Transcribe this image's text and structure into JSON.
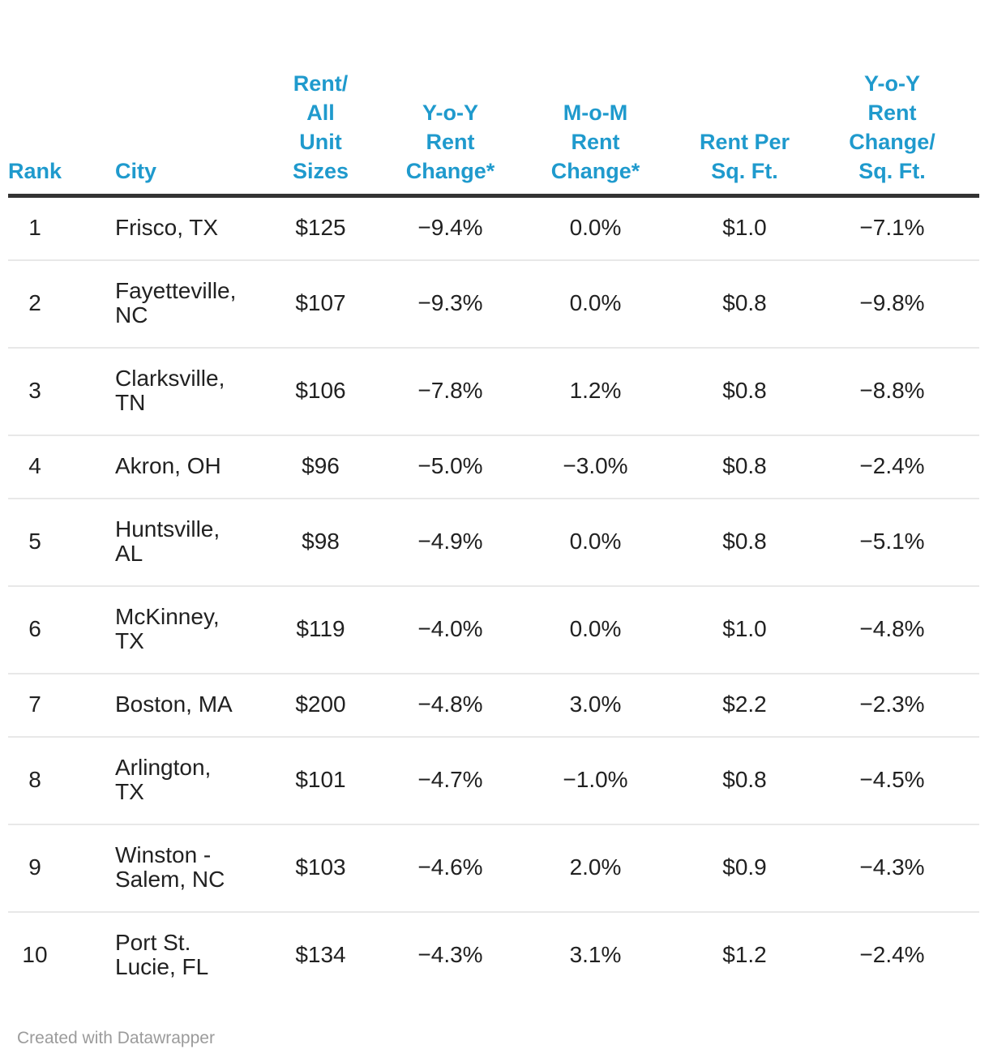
{
  "chart_data": {
    "type": "table",
    "columns": [
      {
        "key": "rank",
        "label": "Rank"
      },
      {
        "key": "city",
        "label": "City"
      },
      {
        "key": "rent",
        "label": "Rent/\nAll\nUnit\nSizes"
      },
      {
        "key": "yoy",
        "label": "Y-o-Y\nRent\nChange*"
      },
      {
        "key": "mom",
        "label": "M-o-M\nRent\nChange*"
      },
      {
        "key": "rpsf",
        "label": "Rent Per\nSq. Ft."
      },
      {
        "key": "yoyrpsf",
        "label": "Y-o-Y\nRent\nChange/\nSq. Ft."
      }
    ],
    "rows": [
      {
        "rank": "1",
        "city": "Frisco, TX",
        "rent": "$125",
        "yoy": "−9.4%",
        "mom": "0.0%",
        "rpsf": "$1.0",
        "yoyrpsf": "−7.1%"
      },
      {
        "rank": "2",
        "city": "Fayetteville,\nNC",
        "rent": "$107",
        "yoy": "−9.3%",
        "mom": "0.0%",
        "rpsf": "$0.8",
        "yoyrpsf": "−9.8%"
      },
      {
        "rank": "3",
        "city": "Clarksville,\nTN",
        "rent": "$106",
        "yoy": "−7.8%",
        "mom": "1.2%",
        "rpsf": "$0.8",
        "yoyrpsf": "−8.8%"
      },
      {
        "rank": "4",
        "city": "Akron, OH",
        "rent": "$96",
        "yoy": "−5.0%",
        "mom": "−3.0%",
        "rpsf": "$0.8",
        "yoyrpsf": "−2.4%"
      },
      {
        "rank": "5",
        "city": "Huntsville,\nAL",
        "rent": "$98",
        "yoy": "−4.9%",
        "mom": "0.0%",
        "rpsf": "$0.8",
        "yoyrpsf": "−5.1%"
      },
      {
        "rank": "6",
        "city": "McKinney,\nTX",
        "rent": "$119",
        "yoy": "−4.0%",
        "mom": "0.0%",
        "rpsf": "$1.0",
        "yoyrpsf": "−4.8%"
      },
      {
        "rank": "7",
        "city": "Boston, MA",
        "rent": "$200",
        "yoy": "−4.8%",
        "mom": "3.0%",
        "rpsf": "$2.2",
        "yoyrpsf": "−2.3%"
      },
      {
        "rank": "8",
        "city": "Arlington,\nTX",
        "rent": "$101",
        "yoy": "−4.7%",
        "mom": "−1.0%",
        "rpsf": "$0.8",
        "yoyrpsf": "−4.5%"
      },
      {
        "rank": "9",
        "city": "Winston -\nSalem, NC",
        "rent": "$103",
        "yoy": "−4.6%",
        "mom": "2.0%",
        "rpsf": "$0.9",
        "yoyrpsf": "−4.3%"
      },
      {
        "rank": "10",
        "city": "Port St.\nLucie, FL",
        "rent": "$134",
        "yoy": "−4.3%",
        "mom": "3.1%",
        "rpsf": "$1.2",
        "yoyrpsf": "−2.4%"
      }
    ]
  },
  "footer": {
    "credit": "Created with Datawrapper"
  },
  "colors": {
    "header_text": "#1f9acd",
    "body_text": "#212121",
    "header_rule": "#333333",
    "row_separator": "#e8e8e8",
    "credit_text": "#9b9b9b",
    "background": "#ffffff"
  }
}
